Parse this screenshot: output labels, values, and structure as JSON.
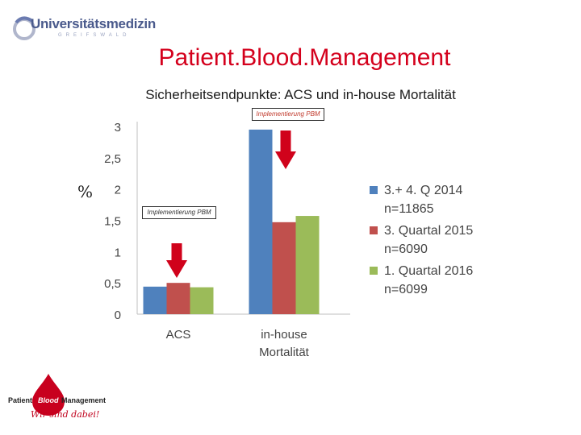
{
  "header": {
    "logo_text": "Universitätsmedizin",
    "logo_sub": "GREIFSWALD",
    "title": "Patient.Blood.Management",
    "subtitle": "Sicherheitsendpunkte: ACS und in-house Mortalität"
  },
  "percent_label": "%",
  "callouts": {
    "top": "Implementierung PBM",
    "left": "Implementierung PBM"
  },
  "colors": {
    "series1": "#4f81bd",
    "series2": "#c0504d",
    "series3": "#9bbb59",
    "arrow": "#d0021b",
    "title": "#d4001c"
  },
  "chart_data": {
    "type": "bar",
    "title": "Sicherheitsendpunkte: ACS und in-house Mortalität",
    "ylabel": "%",
    "ylim": [
      0,
      3
    ],
    "yticks": [
      "0",
      "0,5",
      "1",
      "1,5",
      "2",
      "2,5",
      "3"
    ],
    "ytick_values": [
      0,
      0.5,
      1,
      1.5,
      2,
      2.5,
      3
    ],
    "categories": [
      "ACS",
      "in-house Mortalität"
    ],
    "series": [
      {
        "name": "3.+ 4. Q 2014 n=11865",
        "values": [
          0.44,
          2.95
        ]
      },
      {
        "name": "3. Quartal 2015 n=6090",
        "values": [
          0.5,
          1.47
        ]
      },
      {
        "name": "1. Quartal 2016 n=6099",
        "values": [
          0.43,
          1.57
        ]
      }
    ],
    "legend": "right",
    "grid": false
  },
  "legend_items": [
    {
      "label": "3.+ 4. Q 2014\nn=11865"
    },
    {
      "label": "3. Quartal 2015\nn=6090"
    },
    {
      "label": "1. Quartal 2016\nn=6099"
    }
  ],
  "footer_logo": {
    "left": "Patient",
    "middle": "Blood",
    "right": "Management",
    "slogan": "Wir sind dabei!"
  }
}
